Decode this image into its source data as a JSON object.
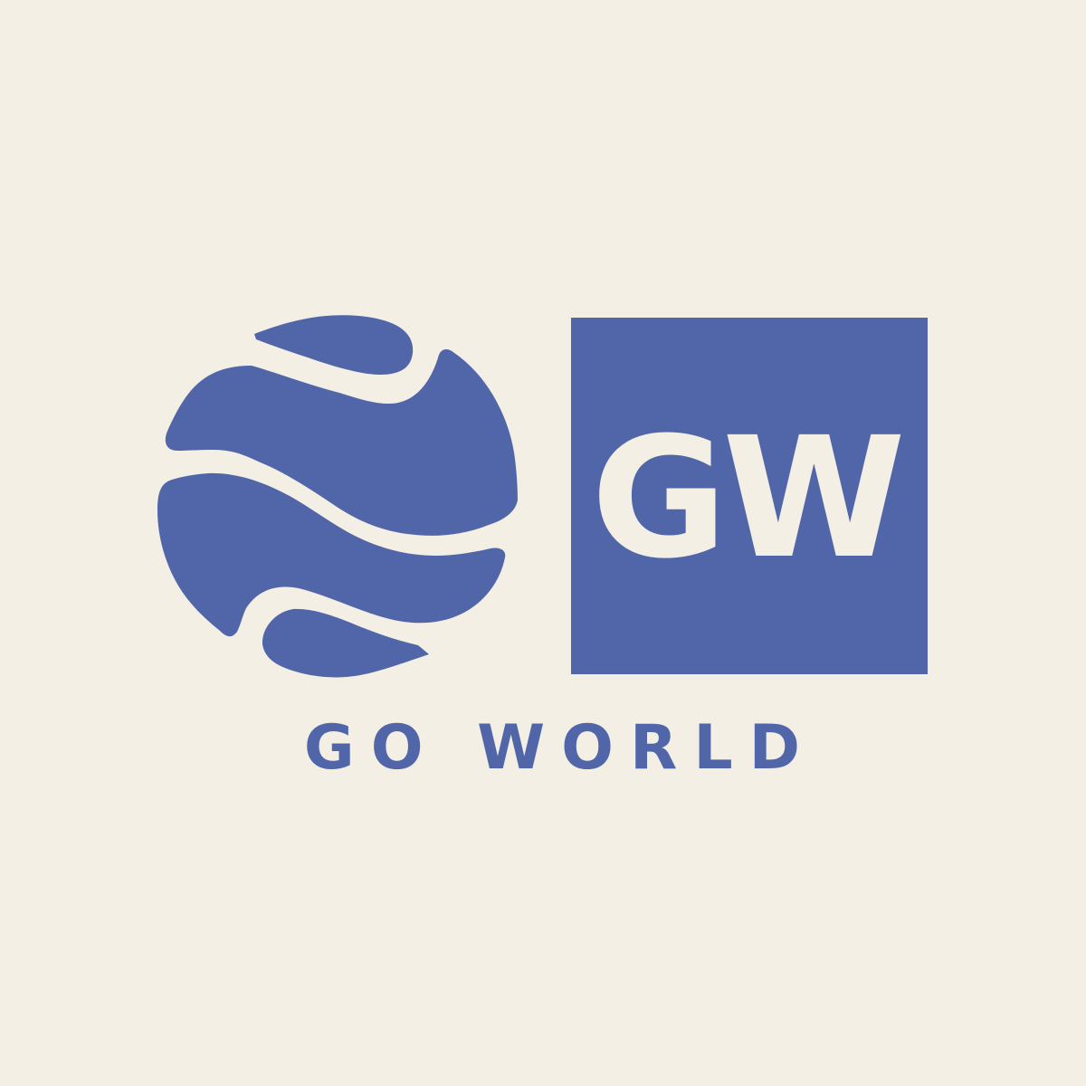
{
  "logo": {
    "monogram": "GW",
    "wordmark": "GO WORLD"
  },
  "colors": {
    "background": "#F3EFE5",
    "brand": "#5166A8"
  },
  "icons": {
    "globe": "globe-icon"
  }
}
